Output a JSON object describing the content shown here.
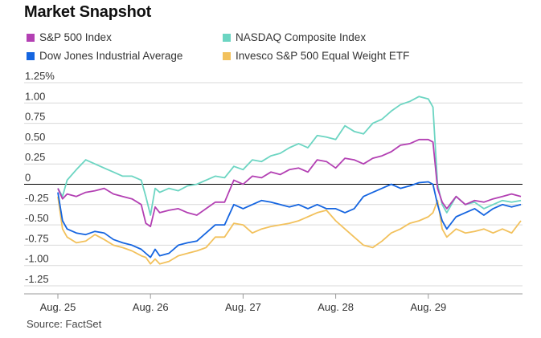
{
  "title": "Market Snapshot",
  "source": "Source: FactSet",
  "colors": {
    "sp500": "#b340b3",
    "nasdaq": "#6cd5c2",
    "dow": "#1565e0",
    "equal_weight": "#f2c15c",
    "zero_line": "#000000",
    "grid": "#d9d9d9"
  },
  "chart_data": {
    "type": "line",
    "title": "Market Snapshot",
    "xlabel": "",
    "ylabel": "",
    "x_tick_labels": [
      "Aug. 25",
      "Aug. 26",
      "Aug. 27",
      "Aug. 28",
      "Aug. 29"
    ],
    "y_tick_labels": [
      "1.25%",
      "1.00",
      "0.75",
      "0.50",
      "0.25",
      "0",
      "-0.25",
      "-0.50",
      "-0.75",
      "-1.00",
      "-1.25"
    ],
    "ylim": [
      -1.25,
      1.25
    ],
    "xlim": [
      0,
      5
    ],
    "grid": "horizontal",
    "legend_position": "top",
    "series": [
      {
        "name": "S&P 500 Index",
        "color": "#b340b3",
        "points": [
          [
            0,
            -0.05
          ],
          [
            0.05,
            -0.18
          ],
          [
            0.1,
            -0.12
          ],
          [
            0.2,
            -0.15
          ],
          [
            0.3,
            -0.1
          ],
          [
            0.4,
            -0.08
          ],
          [
            0.5,
            -0.05
          ],
          [
            0.6,
            -0.12
          ],
          [
            0.7,
            -0.15
          ],
          [
            0.8,
            -0.18
          ],
          [
            0.9,
            -0.25
          ],
          [
            0.95,
            -0.48
          ],
          [
            1.0,
            -0.52
          ],
          [
            1.05,
            -0.28
          ],
          [
            1.1,
            -0.35
          ],
          [
            1.2,
            -0.32
          ],
          [
            1.3,
            -0.3
          ],
          [
            1.4,
            -0.35
          ],
          [
            1.5,
            -0.38
          ],
          [
            1.6,
            -0.3
          ],
          [
            1.7,
            -0.22
          ],
          [
            1.8,
            -0.22
          ],
          [
            1.9,
            0.05
          ],
          [
            2.0,
            0.0
          ],
          [
            2.1,
            0.1
          ],
          [
            2.2,
            0.08
          ],
          [
            2.3,
            0.15
          ],
          [
            2.4,
            0.12
          ],
          [
            2.5,
            0.18
          ],
          [
            2.6,
            0.2
          ],
          [
            2.7,
            0.15
          ],
          [
            2.8,
            0.3
          ],
          [
            2.9,
            0.28
          ],
          [
            3.0,
            0.2
          ],
          [
            3.1,
            0.32
          ],
          [
            3.2,
            0.3
          ],
          [
            3.3,
            0.25
          ],
          [
            3.4,
            0.32
          ],
          [
            3.5,
            0.35
          ],
          [
            3.6,
            0.4
          ],
          [
            3.7,
            0.48
          ],
          [
            3.8,
            0.5
          ],
          [
            3.9,
            0.55
          ],
          [
            4.0,
            0.55
          ],
          [
            4.05,
            0.52
          ],
          [
            4.1,
            -0.05
          ],
          [
            4.15,
            -0.22
          ],
          [
            4.2,
            -0.3
          ],
          [
            4.3,
            -0.15
          ],
          [
            4.4,
            -0.25
          ],
          [
            4.5,
            -0.2
          ],
          [
            4.6,
            -0.22
          ],
          [
            4.7,
            -0.18
          ],
          [
            4.8,
            -0.15
          ],
          [
            4.9,
            -0.12
          ],
          [
            5.0,
            -0.15
          ]
        ]
      },
      {
        "name": "NASDAQ Composite Index",
        "color": "#6cd5c2",
        "points": [
          [
            0,
            -0.05
          ],
          [
            0.05,
            -0.15
          ],
          [
            0.1,
            0.05
          ],
          [
            0.2,
            0.18
          ],
          [
            0.3,
            0.3
          ],
          [
            0.4,
            0.25
          ],
          [
            0.5,
            0.2
          ],
          [
            0.6,
            0.15
          ],
          [
            0.7,
            0.1
          ],
          [
            0.8,
            0.1
          ],
          [
            0.9,
            0.05
          ],
          [
            0.95,
            -0.15
          ],
          [
            1.0,
            -0.38
          ],
          [
            1.05,
            -0.05
          ],
          [
            1.1,
            -0.1
          ],
          [
            1.2,
            -0.05
          ],
          [
            1.3,
            -0.08
          ],
          [
            1.4,
            -0.02
          ],
          [
            1.5,
            0.0
          ],
          [
            1.6,
            0.05
          ],
          [
            1.7,
            0.1
          ],
          [
            1.8,
            0.08
          ],
          [
            1.9,
            0.22
          ],
          [
            2.0,
            0.18
          ],
          [
            2.1,
            0.3
          ],
          [
            2.2,
            0.28
          ],
          [
            2.3,
            0.35
          ],
          [
            2.4,
            0.38
          ],
          [
            2.5,
            0.45
          ],
          [
            2.6,
            0.5
          ],
          [
            2.7,
            0.45
          ],
          [
            2.8,
            0.6
          ],
          [
            2.9,
            0.58
          ],
          [
            3.0,
            0.55
          ],
          [
            3.1,
            0.72
          ],
          [
            3.2,
            0.65
          ],
          [
            3.3,
            0.62
          ],
          [
            3.4,
            0.75
          ],
          [
            3.5,
            0.8
          ],
          [
            3.6,
            0.9
          ],
          [
            3.7,
            0.98
          ],
          [
            3.8,
            1.02
          ],
          [
            3.9,
            1.08
          ],
          [
            4.0,
            1.05
          ],
          [
            4.05,
            0.95
          ],
          [
            4.1,
            0.0
          ],
          [
            4.15,
            -0.25
          ],
          [
            4.2,
            -0.35
          ],
          [
            4.3,
            -0.15
          ],
          [
            4.4,
            -0.25
          ],
          [
            4.5,
            -0.22
          ],
          [
            4.6,
            -0.3
          ],
          [
            4.7,
            -0.25
          ],
          [
            4.8,
            -0.2
          ],
          [
            4.9,
            -0.22
          ],
          [
            5.0,
            -0.2
          ]
        ]
      },
      {
        "name": "Dow Jones Industrial Average",
        "color": "#1565e0",
        "points": [
          [
            0,
            -0.1
          ],
          [
            0.05,
            -0.45
          ],
          [
            0.1,
            -0.55
          ],
          [
            0.2,
            -0.6
          ],
          [
            0.3,
            -0.62
          ],
          [
            0.4,
            -0.58
          ],
          [
            0.5,
            -0.6
          ],
          [
            0.6,
            -0.68
          ],
          [
            0.7,
            -0.72
          ],
          [
            0.8,
            -0.75
          ],
          [
            0.9,
            -0.8
          ],
          [
            0.95,
            -0.85
          ],
          [
            1.0,
            -0.9
          ],
          [
            1.05,
            -0.8
          ],
          [
            1.1,
            -0.88
          ],
          [
            1.2,
            -0.85
          ],
          [
            1.3,
            -0.75
          ],
          [
            1.4,
            -0.72
          ],
          [
            1.5,
            -0.7
          ],
          [
            1.6,
            -0.6
          ],
          [
            1.7,
            -0.5
          ],
          [
            1.8,
            -0.5
          ],
          [
            1.9,
            -0.25
          ],
          [
            2.0,
            -0.3
          ],
          [
            2.1,
            -0.25
          ],
          [
            2.2,
            -0.2
          ],
          [
            2.3,
            -0.22
          ],
          [
            2.4,
            -0.25
          ],
          [
            2.5,
            -0.28
          ],
          [
            2.6,
            -0.25
          ],
          [
            2.7,
            -0.3
          ],
          [
            2.8,
            -0.25
          ],
          [
            2.9,
            -0.3
          ],
          [
            3.0,
            -0.3
          ],
          [
            3.1,
            -0.35
          ],
          [
            3.2,
            -0.3
          ],
          [
            3.3,
            -0.15
          ],
          [
            3.4,
            -0.1
          ],
          [
            3.5,
            -0.05
          ],
          [
            3.6,
            0.0
          ],
          [
            3.7,
            -0.05
          ],
          [
            3.8,
            -0.02
          ],
          [
            3.9,
            0.02
          ],
          [
            4.0,
            0.03
          ],
          [
            4.05,
            0.0
          ],
          [
            4.1,
            -0.25
          ],
          [
            4.15,
            -0.45
          ],
          [
            4.2,
            -0.55
          ],
          [
            4.3,
            -0.4
          ],
          [
            4.4,
            -0.35
          ],
          [
            4.5,
            -0.3
          ],
          [
            4.6,
            -0.38
          ],
          [
            4.7,
            -0.3
          ],
          [
            4.8,
            -0.25
          ],
          [
            4.9,
            -0.28
          ],
          [
            5.0,
            -0.25
          ]
        ]
      },
      {
        "name": "Invesco S&P 500 Equal Weight ETF",
        "color": "#f2c15c",
        "points": [
          [
            0,
            -0.15
          ],
          [
            0.05,
            -0.55
          ],
          [
            0.1,
            -0.65
          ],
          [
            0.2,
            -0.72
          ],
          [
            0.3,
            -0.7
          ],
          [
            0.4,
            -0.62
          ],
          [
            0.5,
            -0.68
          ],
          [
            0.6,
            -0.75
          ],
          [
            0.7,
            -0.78
          ],
          [
            0.8,
            -0.82
          ],
          [
            0.9,
            -0.88
          ],
          [
            0.95,
            -0.9
          ],
          [
            1.0,
            -0.98
          ],
          [
            1.05,
            -0.92
          ],
          [
            1.1,
            -0.98
          ],
          [
            1.2,
            -0.95
          ],
          [
            1.3,
            -0.88
          ],
          [
            1.4,
            -0.85
          ],
          [
            1.5,
            -0.82
          ],
          [
            1.6,
            -0.78
          ],
          [
            1.7,
            -0.65
          ],
          [
            1.8,
            -0.65
          ],
          [
            1.9,
            -0.48
          ],
          [
            2.0,
            -0.5
          ],
          [
            2.1,
            -0.6
          ],
          [
            2.2,
            -0.55
          ],
          [
            2.3,
            -0.52
          ],
          [
            2.4,
            -0.5
          ],
          [
            2.5,
            -0.48
          ],
          [
            2.6,
            -0.45
          ],
          [
            2.7,
            -0.4
          ],
          [
            2.8,
            -0.35
          ],
          [
            2.9,
            -0.32
          ],
          [
            3.0,
            -0.45
          ],
          [
            3.1,
            -0.55
          ],
          [
            3.2,
            -0.65
          ],
          [
            3.3,
            -0.75
          ],
          [
            3.4,
            -0.78
          ],
          [
            3.5,
            -0.7
          ],
          [
            3.6,
            -0.6
          ],
          [
            3.7,
            -0.55
          ],
          [
            3.8,
            -0.48
          ],
          [
            3.9,
            -0.45
          ],
          [
            4.0,
            -0.4
          ],
          [
            4.05,
            -0.35
          ],
          [
            4.1,
            -0.2
          ],
          [
            4.15,
            -0.55
          ],
          [
            4.2,
            -0.65
          ],
          [
            4.3,
            -0.55
          ],
          [
            4.4,
            -0.6
          ],
          [
            4.5,
            -0.58
          ],
          [
            4.6,
            -0.55
          ],
          [
            4.7,
            -0.6
          ],
          [
            4.8,
            -0.55
          ],
          [
            4.9,
            -0.6
          ],
          [
            5.0,
            -0.45
          ]
        ]
      }
    ]
  }
}
